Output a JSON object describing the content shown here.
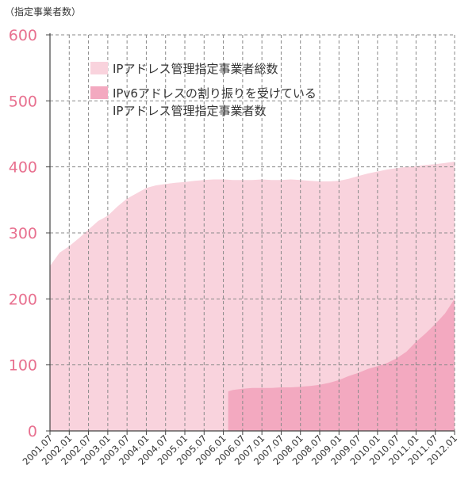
{
  "chart_data": {
    "type": "area",
    "unit_label": "（指定事業者数）",
    "ylim": [
      0,
      600
    ],
    "yticks": [
      "0",
      "100",
      "200",
      "300",
      "400",
      "500",
      "600"
    ],
    "xlabels": [
      "2001.07",
      "2002.01",
      "2002.07",
      "2003.01",
      "2003.07",
      "2004.01",
      "2004.07",
      "2005.01",
      "2005.07",
      "2006.01",
      "2006.07",
      "2007.01",
      "2007.07",
      "2008.01",
      "2008.07",
      "2009.01",
      "2009.07",
      "2010.01",
      "2010.07",
      "2011.01",
      "2011.07",
      "2012.01"
    ],
    "grid": true,
    "legend_position": "top-left",
    "series": [
      {
        "name": "IPアドレス管理指定事業者総数",
        "color": "#f9d3dd",
        "values": [
          [
            0,
            250
          ],
          [
            0.5,
            270
          ],
          [
            1,
            280
          ],
          [
            1.5,
            292
          ],
          [
            2,
            305
          ],
          [
            2.5,
            318
          ],
          [
            3,
            326
          ],
          [
            3.5,
            340
          ],
          [
            4,
            352
          ],
          [
            4.5,
            360
          ],
          [
            5,
            368
          ],
          [
            5.5,
            372
          ],
          [
            6,
            374
          ],
          [
            6.5,
            376
          ],
          [
            7,
            377
          ],
          [
            7.5,
            379
          ],
          [
            8,
            380
          ],
          [
            8.5,
            381
          ],
          [
            9,
            381
          ],
          [
            9.5,
            380
          ],
          [
            10,
            380
          ],
          [
            10.5,
            380
          ],
          [
            11,
            381
          ],
          [
            11.5,
            380
          ],
          [
            12,
            380
          ],
          [
            12.5,
            381
          ],
          [
            13,
            380
          ],
          [
            13.5,
            379
          ],
          [
            14,
            378
          ],
          [
            14.5,
            378
          ],
          [
            15,
            379
          ],
          [
            15.5,
            382
          ],
          [
            16,
            386
          ],
          [
            16.5,
            390
          ],
          [
            17,
            393
          ],
          [
            17.5,
            396
          ],
          [
            18,
            398
          ],
          [
            18.5,
            400
          ],
          [
            19,
            401
          ],
          [
            19.5,
            403
          ],
          [
            20,
            404
          ],
          [
            20.5,
            406
          ],
          [
            21,
            408
          ]
        ]
      },
      {
        "name": "IPv6アドレスの割り振りを受けているIPアドレス管理指定事業者数",
        "legend_lines": [
          "IPv6アドレスの割り振りを受けている",
          "IPアドレス管理指定事業者数"
        ],
        "color": "#f3a9c0",
        "values": [
          [
            9.25,
            60
          ],
          [
            9.5,
            62
          ],
          [
            10,
            64
          ],
          [
            10.5,
            65
          ],
          [
            11,
            65
          ],
          [
            11.5,
            65
          ],
          [
            12,
            66
          ],
          [
            12.5,
            66
          ],
          [
            13,
            67
          ],
          [
            13.5,
            68
          ],
          [
            14,
            70
          ],
          [
            14.5,
            73
          ],
          [
            15,
            77
          ],
          [
            15.5,
            83
          ],
          [
            16,
            88
          ],
          [
            16.5,
            94
          ],
          [
            17,
            98
          ],
          [
            17.5,
            103
          ],
          [
            18,
            110
          ],
          [
            18.5,
            120
          ],
          [
            19,
            135
          ],
          [
            19.5,
            148
          ],
          [
            20,
            162
          ],
          [
            20.5,
            178
          ],
          [
            21,
            200
          ]
        ]
      }
    ]
  }
}
